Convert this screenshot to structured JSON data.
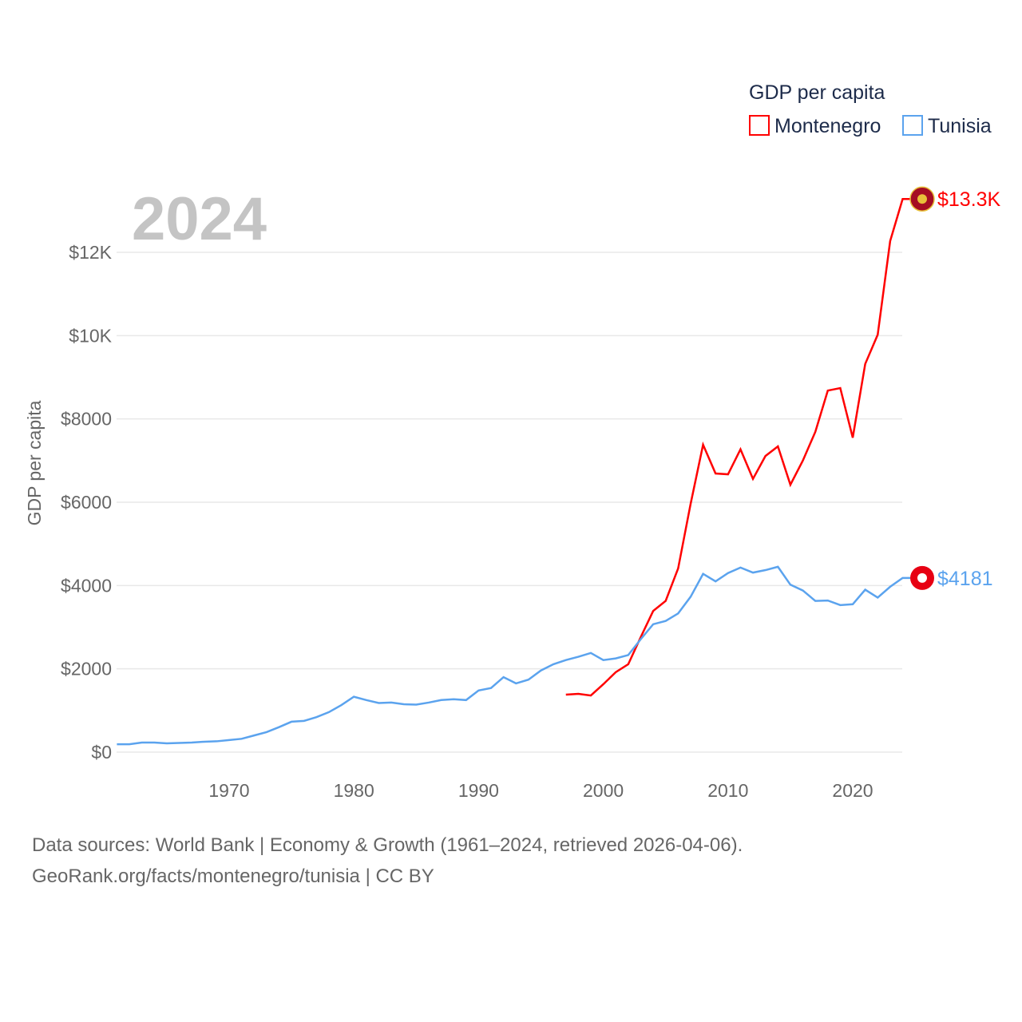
{
  "chart_data": {
    "type": "line",
    "title": "GDP per capita",
    "ylabel": "GDP per capita",
    "xlabel": "",
    "year_label": "2024",
    "xlim": [
      1961,
      2024
    ],
    "ylim": [
      0,
      13300
    ],
    "grid": true,
    "legend_placement": "top-right",
    "x_ticks": [
      1970,
      1980,
      1990,
      2000,
      2010,
      2020
    ],
    "y_ticks": [
      {
        "v": 0,
        "l": "$0"
      },
      {
        "v": 2000,
        "l": "$2000"
      },
      {
        "v": 4000,
        "l": "$4000"
      },
      {
        "v": 6000,
        "l": "$6000"
      },
      {
        "v": 8000,
        "l": "$8000"
      },
      {
        "v": 10000,
        "l": "$10K"
      },
      {
        "v": 12000,
        "l": "$12K"
      }
    ],
    "series": [
      {
        "name": "Montenegro",
        "color": "#ff0000",
        "end_label": "$13.3K",
        "icon": "montenegro-flag-icon",
        "start": 1997,
        "values": [
          1380,
          1400,
          1360,
          1630,
          1920,
          2110,
          2760,
          3390,
          3630,
          4410,
          5960,
          7380,
          6690,
          6670,
          7270,
          6560,
          7110,
          7340,
          6420,
          7000,
          7690,
          8680,
          8740,
          7550,
          9320,
          10020,
          12270,
          13280
        ]
      },
      {
        "name": "Tunisia",
        "color": "#5ba3ee",
        "end_label": "$4181",
        "icon": "tunisia-flag-icon",
        "start": 1961,
        "values": [
          190,
          190,
          230,
          230,
          210,
          220,
          230,
          250,
          260,
          290,
          320,
          400,
          480,
          600,
          730,
          750,
          840,
          960,
          1130,
          1330,
          1250,
          1180,
          1190,
          1150,
          1140,
          1190,
          1250,
          1270,
          1250,
          1480,
          1540,
          1800,
          1650,
          1740,
          1960,
          2110,
          2210,
          2290,
          2380,
          2210,
          2250,
          2330,
          2710,
          3070,
          3150,
          3330,
          3730,
          4280,
          4100,
          4300,
          4430,
          4310,
          4370,
          4450,
          4020,
          3880,
          3630,
          3640,
          3530,
          3550,
          3900,
          3710,
          3970,
          4181
        ]
      }
    ]
  },
  "footer": {
    "line1": "Data sources: World Bank | Economy & Growth (1961–2024, retrieved 2026-04-06).",
    "line2": "GeoRank.org/facts/montenegro/tunisia | CC BY"
  }
}
